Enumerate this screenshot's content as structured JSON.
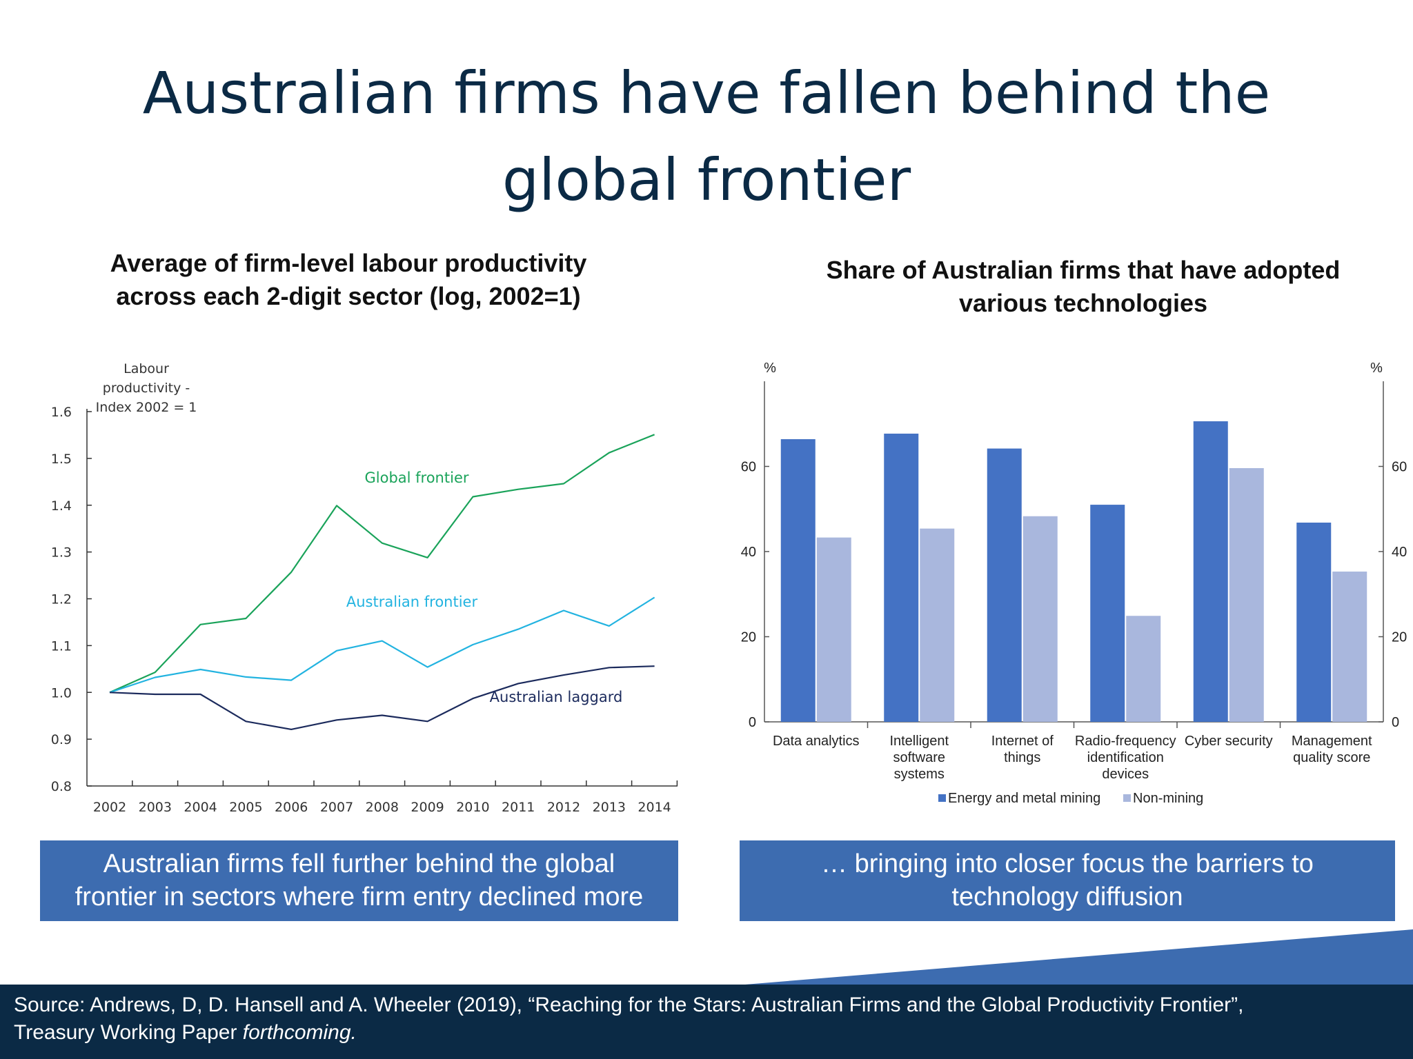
{
  "slide": {
    "title_line1": "Australian firms have fallen behind the",
    "title_line2": "global frontier",
    "caption_left_line1": "Australian firms fell further behind the global",
    "caption_left_line2": "frontier in sectors where firm entry declined more",
    "caption_right_line1": "… bringing into closer focus the barriers to",
    "caption_right_line2": "technology diffusion",
    "source_line1": "Source: Andrews, D, D. Hansell and A. Wheeler (2019), “Reaching for the Stars: Australian Firms and the Global Productivity Frontier”,",
    "source_line2_prefix": "Treasury Working Paper ",
    "source_line2_italic": "forthcoming.",
    "colors": {
      "title": "#0b2a45",
      "caption_bg": "#3d6cb0",
      "footer_bg": "#0b2a45",
      "wedge": "#3d6cb0"
    }
  },
  "chart_data": [
    {
      "type": "line",
      "title_line1": "Average of firm-level labour productivity",
      "title_line2": "across each 2-digit sector (log, 2002=1)",
      "ylabel_lines": [
        "Labour",
        "productivity -",
        "Index 2002 = 1"
      ],
      "xlabel": "",
      "x": [
        "2002",
        "2003",
        "2004",
        "2005",
        "2006",
        "2007",
        "2008",
        "2009",
        "2010",
        "2011",
        "2012",
        "2013",
        "2014"
      ],
      "ylim": [
        0.8,
        1.6
      ],
      "yticks": [
        "0.8",
        "0.9",
        "1.0",
        "1.1",
        "1.2",
        "1.3",
        "1.4",
        "1.5",
        "1.6"
      ],
      "grid": false,
      "legend": "inline labels",
      "series": [
        {
          "name": "Global frontier",
          "color": "#1aa35a",
          "values": [
            1.0,
            1.043,
            1.145,
            1.158,
            1.257,
            1.399,
            1.319,
            1.288,
            1.418,
            1.434,
            1.446,
            1.512,
            1.551
          ]
        },
        {
          "name": "Australian frontier",
          "color": "#22b3e0",
          "values": [
            1.0,
            1.032,
            1.049,
            1.033,
            1.026,
            1.089,
            1.11,
            1.054,
            1.102,
            1.135,
            1.175,
            1.142,
            1.203
          ]
        },
        {
          "name": "Australian laggard",
          "color": "#1b2a5c",
          "values": [
            1.0,
            0.996,
            0.996,
            0.938,
            0.921,
            0.941,
            0.951,
            0.938,
            0.987,
            1.019,
            1.037,
            1.053,
            1.056
          ]
        }
      ]
    },
    {
      "type": "bar",
      "title_line1": "Share of Australian firms that have adopted",
      "title_line2": "various technologies",
      "ylabel_left": "%",
      "ylabel_right": "%",
      "xlabel": "",
      "categories": [
        [
          "Data analytics"
        ],
        [
          "Intelligent",
          "software",
          "systems"
        ],
        [
          "Internet of",
          "things"
        ],
        [
          "Radio-frequency",
          "identification",
          "devices"
        ],
        [
          "Cyber security"
        ],
        [
          "Management",
          "quality score"
        ]
      ],
      "ylim": [
        0,
        80
      ],
      "yticks": [
        "0",
        "20",
        "40",
        "60"
      ],
      "grid": false,
      "legend": "bottom",
      "series": [
        {
          "name": "Energy and metal mining",
          "color": "#4472c4",
          "values": [
            66.4,
            67.7,
            64.2,
            51.0,
            70.6,
            46.8
          ]
        },
        {
          "name": "Non-mining",
          "color": "#a9b7dd",
          "values": [
            43.3,
            45.4,
            48.3,
            24.9,
            59.6,
            35.3
          ]
        }
      ]
    }
  ]
}
